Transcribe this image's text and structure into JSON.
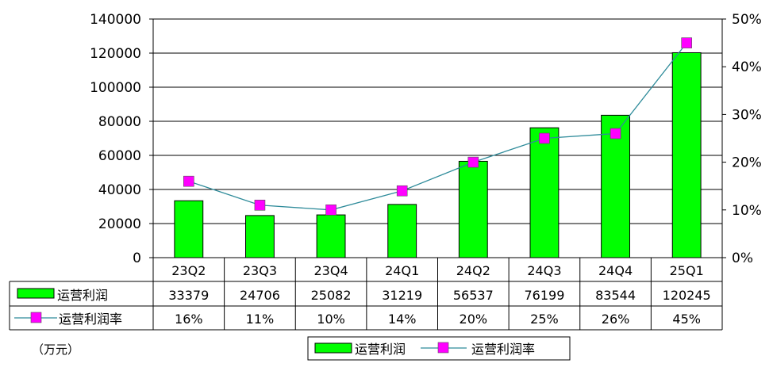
{
  "chart_data": {
    "type": "bar",
    "categories": [
      "23Q2",
      "23Q3",
      "23Q4",
      "24Q1",
      "24Q2",
      "24Q3",
      "24Q4",
      "25Q1"
    ],
    "series": [
      {
        "name": "运营利润",
        "type": "bar",
        "axis": "left",
        "color": "#00ff00",
        "values": [
          33379,
          24706,
          25082,
          31219,
          56537,
          76199,
          83544,
          120245
        ]
      },
      {
        "name": "运营利润率",
        "type": "line",
        "axis": "right",
        "color": "#2e8b9a",
        "marker_color": "#ff00ff",
        "values": [
          16,
          11,
          10,
          14,
          20,
          25,
          26,
          45
        ]
      }
    ],
    "table_values": {
      "profit": [
        "33379",
        "24706",
        "25082",
        "31219",
        "56537",
        "76199",
        "83544",
        "120245"
      ],
      "margin": [
        "16%",
        "11%",
        "10%",
        "14%",
        "20%",
        "25%",
        "26%",
        "45%"
      ]
    },
    "ylim_left": [
      0,
      140000
    ],
    "ylim_right": [
      0,
      50
    ],
    "left_ticks": [
      "0",
      "20000",
      "40000",
      "60000",
      "80000",
      "100000",
      "120000",
      "140000"
    ],
    "right_ticks": [
      "0%",
      "10%",
      "20%",
      "30%",
      "40%",
      "50%"
    ],
    "unit_label": "（万元）",
    "grid": true,
    "legend_position": "bottom-right"
  }
}
